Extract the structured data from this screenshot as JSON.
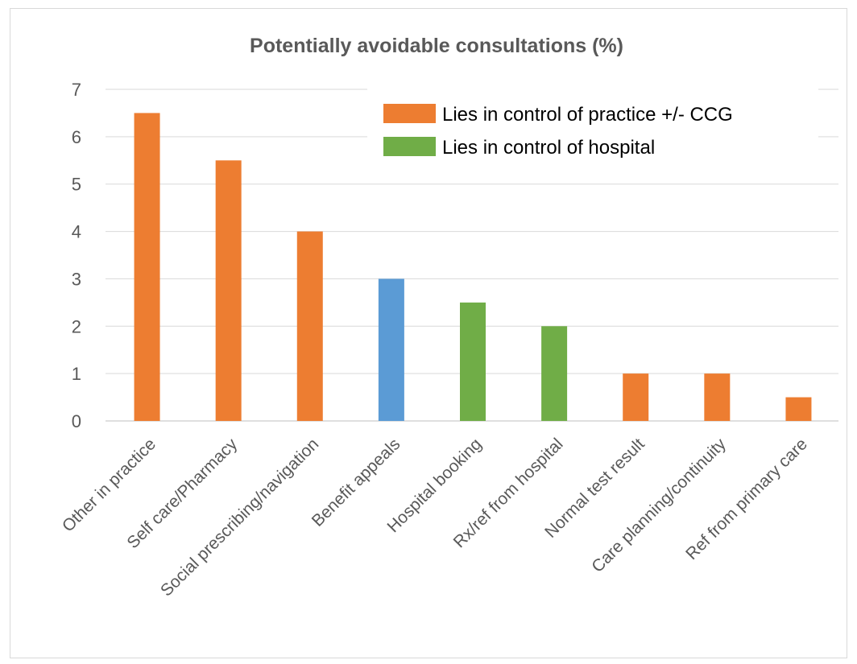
{
  "chart_data": {
    "type": "bar",
    "title": "Potentially avoidable consultations (%)",
    "xlabel": "",
    "ylabel": "",
    "ylim": [
      0,
      7
    ],
    "y_ticks": [
      "0",
      "1",
      "2",
      "3",
      "4",
      "5",
      "6",
      "7"
    ],
    "grid": true,
    "legend_position": "top-right",
    "categories": [
      "Other in practice",
      "Self care/Pharmacy",
      "Social prescribing/navigation",
      "Benefit appeals",
      "Hospital booking",
      "Rx/ref from hospital",
      "Normal test result",
      "Care planning/continuity",
      "Ref from primary care"
    ],
    "values": [
      6.5,
      5.5,
      4,
      3,
      2.5,
      2,
      1,
      1,
      0.5
    ],
    "bar_colors": [
      "#ED7D31",
      "#ED7D31",
      "#ED7D31",
      "#5B9BD5",
      "#70AD47",
      "#70AD47",
      "#ED7D31",
      "#ED7D31",
      "#ED7D31"
    ],
    "legend": [
      {
        "label": "Lies in control of practice +/- CCG",
        "color": "#ED7D31"
      },
      {
        "label": "Lies in control of hospital",
        "color": "#70AD47"
      }
    ]
  }
}
